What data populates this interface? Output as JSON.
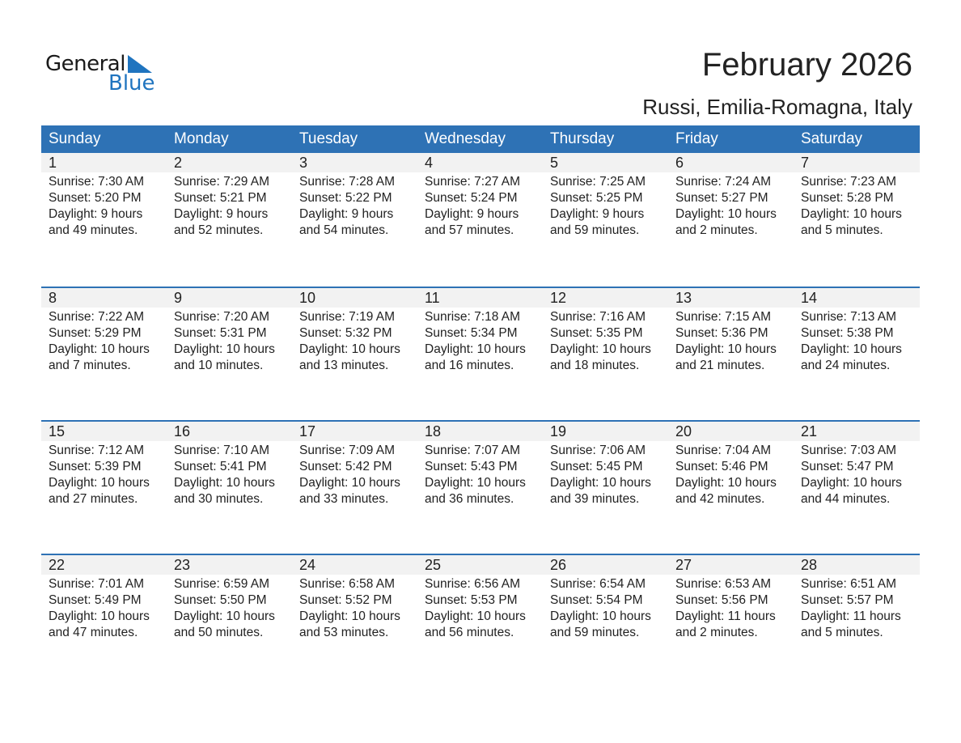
{
  "logo": {
    "text_top": "General",
    "text_bottom": "Blue",
    "color": "#1f74bf"
  },
  "title": "February 2026",
  "subtitle": "Russi, Emilia-Romagna, Italy",
  "colors": {
    "header": "#2e72b5",
    "band": "#f2f2f2"
  },
  "weekdays": [
    "Sunday",
    "Monday",
    "Tuesday",
    "Wednesday",
    "Thursday",
    "Friday",
    "Saturday"
  ],
  "weeks": [
    {
      "days": [
        {
          "day": "1",
          "sunrise": "Sunrise: 7:30 AM",
          "sunset": "Sunset: 5:20 PM",
          "daylight": "Daylight: 9 hours",
          "minutes": "and 49 minutes."
        },
        {
          "day": "2",
          "sunrise": "Sunrise: 7:29 AM",
          "sunset": "Sunset: 5:21 PM",
          "daylight": "Daylight: 9 hours",
          "minutes": "and 52 minutes."
        },
        {
          "day": "3",
          "sunrise": "Sunrise: 7:28 AM",
          "sunset": "Sunset: 5:22 PM",
          "daylight": "Daylight: 9 hours",
          "minutes": "and 54 minutes."
        },
        {
          "day": "4",
          "sunrise": "Sunrise: 7:27 AM",
          "sunset": "Sunset: 5:24 PM",
          "daylight": "Daylight: 9 hours",
          "minutes": "and 57 minutes."
        },
        {
          "day": "5",
          "sunrise": "Sunrise: 7:25 AM",
          "sunset": "Sunset: 5:25 PM",
          "daylight": "Daylight: 9 hours",
          "minutes": "and 59 minutes."
        },
        {
          "day": "6",
          "sunrise": "Sunrise: 7:24 AM",
          "sunset": "Sunset: 5:27 PM",
          "daylight": "Daylight: 10 hours",
          "minutes": "and 2 minutes."
        },
        {
          "day": "7",
          "sunrise": "Sunrise: 7:23 AM",
          "sunset": "Sunset: 5:28 PM",
          "daylight": "Daylight: 10 hours",
          "minutes": "and 5 minutes."
        }
      ]
    },
    {
      "days": [
        {
          "day": "8",
          "sunrise": "Sunrise: 7:22 AM",
          "sunset": "Sunset: 5:29 PM",
          "daylight": "Daylight: 10 hours",
          "minutes": "and 7 minutes."
        },
        {
          "day": "9",
          "sunrise": "Sunrise: 7:20 AM",
          "sunset": "Sunset: 5:31 PM",
          "daylight": "Daylight: 10 hours",
          "minutes": "and 10 minutes."
        },
        {
          "day": "10",
          "sunrise": "Sunrise: 7:19 AM",
          "sunset": "Sunset: 5:32 PM",
          "daylight": "Daylight: 10 hours",
          "minutes": "and 13 minutes."
        },
        {
          "day": "11",
          "sunrise": "Sunrise: 7:18 AM",
          "sunset": "Sunset: 5:34 PM",
          "daylight": "Daylight: 10 hours",
          "minutes": "and 16 minutes."
        },
        {
          "day": "12",
          "sunrise": "Sunrise: 7:16 AM",
          "sunset": "Sunset: 5:35 PM",
          "daylight": "Daylight: 10 hours",
          "minutes": "and 18 minutes."
        },
        {
          "day": "13",
          "sunrise": "Sunrise: 7:15 AM",
          "sunset": "Sunset: 5:36 PM",
          "daylight": "Daylight: 10 hours",
          "minutes": "and 21 minutes."
        },
        {
          "day": "14",
          "sunrise": "Sunrise: 7:13 AM",
          "sunset": "Sunset: 5:38 PM",
          "daylight": "Daylight: 10 hours",
          "minutes": "and 24 minutes."
        }
      ]
    },
    {
      "days": [
        {
          "day": "15",
          "sunrise": "Sunrise: 7:12 AM",
          "sunset": "Sunset: 5:39 PM",
          "daylight": "Daylight: 10 hours",
          "minutes": "and 27 minutes."
        },
        {
          "day": "16",
          "sunrise": "Sunrise: 7:10 AM",
          "sunset": "Sunset: 5:41 PM",
          "daylight": "Daylight: 10 hours",
          "minutes": "and 30 minutes."
        },
        {
          "day": "17",
          "sunrise": "Sunrise: 7:09 AM",
          "sunset": "Sunset: 5:42 PM",
          "daylight": "Daylight: 10 hours",
          "minutes": "and 33 minutes."
        },
        {
          "day": "18",
          "sunrise": "Sunrise: 7:07 AM",
          "sunset": "Sunset: 5:43 PM",
          "daylight": "Daylight: 10 hours",
          "minutes": "and 36 minutes."
        },
        {
          "day": "19",
          "sunrise": "Sunrise: 7:06 AM",
          "sunset": "Sunset: 5:45 PM",
          "daylight": "Daylight: 10 hours",
          "minutes": "and 39 minutes."
        },
        {
          "day": "20",
          "sunrise": "Sunrise: 7:04 AM",
          "sunset": "Sunset: 5:46 PM",
          "daylight": "Daylight: 10 hours",
          "minutes": "and 42 minutes."
        },
        {
          "day": "21",
          "sunrise": "Sunrise: 7:03 AM",
          "sunset": "Sunset: 5:47 PM",
          "daylight": "Daylight: 10 hours",
          "minutes": "and 44 minutes."
        }
      ]
    },
    {
      "days": [
        {
          "day": "22",
          "sunrise": "Sunrise: 7:01 AM",
          "sunset": "Sunset: 5:49 PM",
          "daylight": "Daylight: 10 hours",
          "minutes": "and 47 minutes."
        },
        {
          "day": "23",
          "sunrise": "Sunrise: 6:59 AM",
          "sunset": "Sunset: 5:50 PM",
          "daylight": "Daylight: 10 hours",
          "minutes": "and 50 minutes."
        },
        {
          "day": "24",
          "sunrise": "Sunrise: 6:58 AM",
          "sunset": "Sunset: 5:52 PM",
          "daylight": "Daylight: 10 hours",
          "minutes": "and 53 minutes."
        },
        {
          "day": "25",
          "sunrise": "Sunrise: 6:56 AM",
          "sunset": "Sunset: 5:53 PM",
          "daylight": "Daylight: 10 hours",
          "minutes": "and 56 minutes."
        },
        {
          "day": "26",
          "sunrise": "Sunrise: 6:54 AM",
          "sunset": "Sunset: 5:54 PM",
          "daylight": "Daylight: 10 hours",
          "minutes": "and 59 minutes."
        },
        {
          "day": "27",
          "sunrise": "Sunrise: 6:53 AM",
          "sunset": "Sunset: 5:56 PM",
          "daylight": "Daylight: 11 hours",
          "minutes": "and 2 minutes."
        },
        {
          "day": "28",
          "sunrise": "Sunrise: 6:51 AM",
          "sunset": "Sunset: 5:57 PM",
          "daylight": "Daylight: 11 hours",
          "minutes": "and 5 minutes."
        }
      ]
    }
  ]
}
